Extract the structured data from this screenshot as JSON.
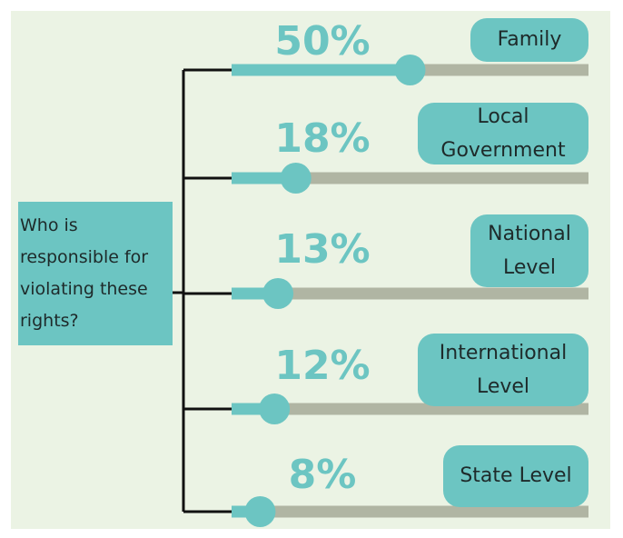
{
  "chart_data": {
    "type": "slider",
    "title": "Who is responsible for violating these rights?",
    "categories": [
      "Family",
      "Local Government",
      "National Level",
      "International Level",
      "State Level"
    ],
    "values": [
      50,
      18,
      13,
      12,
      8
    ],
    "value_labels": [
      "50%",
      "18%",
      "13%",
      "12%",
      "8%"
    ],
    "xlim": [
      0,
      100
    ],
    "color": "#6cc5c2",
    "track_color": "#b0b5a3"
  }
}
